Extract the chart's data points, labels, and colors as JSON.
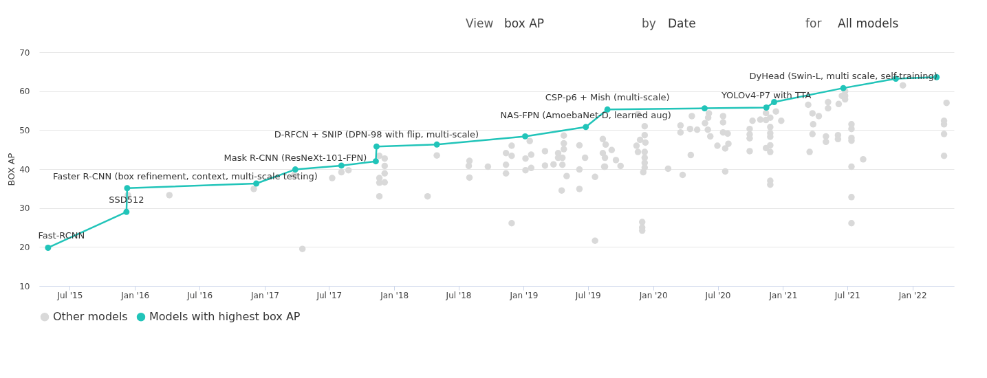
{
  "chart_data": {
    "type": "scatter",
    "xlabel": null,
    "ylabel": "BOX AP",
    "xlim": [
      "2015-04-06",
      "2022-04-28"
    ],
    "ylim": [
      10,
      70
    ],
    "yticks": [
      10,
      20,
      30,
      40,
      50,
      60,
      70
    ],
    "xticks": [
      {
        "value": "2015-07-01",
        "label": "Jul '15"
      },
      {
        "value": "2016-01-01",
        "label": "Jan '16"
      },
      {
        "value": "2016-07-01",
        "label": "Jul '16"
      },
      {
        "value": "2017-01-01",
        "label": "Jan '17"
      },
      {
        "value": "2017-07-01",
        "label": "Jul '17"
      },
      {
        "value": "2018-01-01",
        "label": "Jan '18"
      },
      {
        "value": "2018-07-01",
        "label": "Jul '18"
      },
      {
        "value": "2019-01-01",
        "label": "Jan '19"
      },
      {
        "value": "2019-07-01",
        "label": "Jul '19"
      },
      {
        "value": "2020-01-01",
        "label": "Jan '20"
      },
      {
        "value": "2020-07-01",
        "label": "Jul '20"
      },
      {
        "value": "2021-01-01",
        "label": "Jan '21"
      },
      {
        "value": "2021-07-01",
        "label": "Jul '21"
      },
      {
        "value": "2022-01-01",
        "label": "Jan '22"
      }
    ],
    "grid": "y",
    "legend": "bottom",
    "marker": "circle",
    "series": [
      {
        "name": "Other models",
        "color": "#d9d9d9",
        "x": [
          "2015-12-12",
          "2016-04-07",
          "2016-12-01",
          "2017-04-17",
          "2017-03-25",
          "2017-07-10",
          "2017-08-05",
          "2017-08-25",
          "2017-11-20",
          "2017-12-05",
          "2017-12-05",
          "2017-12-05",
          "2017-11-20",
          "2017-11-20",
          "2017-12-05",
          "2017-11-20",
          "2018-04-05",
          "2018-05-01",
          "2018-08-01",
          "2018-07-30",
          "2018-08-01",
          "2018-09-22",
          "2018-11-12",
          "2018-11-28",
          "2018-11-12",
          "2018-11-12",
          "2018-11-28",
          "2018-11-28",
          "2019-01-06",
          "2019-01-06",
          "2019-01-22",
          "2019-01-22",
          "2019-01-18",
          "2019-03-02",
          "2019-03-02",
          "2019-03-26",
          "2019-04-08",
          "2019-04-24",
          "2019-04-24",
          "2019-04-08",
          "2019-04-24",
          "2019-04-20",
          "2019-04-20",
          "2019-05-02",
          "2019-04-18",
          "2019-06-07",
          "2019-06-07",
          "2019-06-07",
          "2019-06-23",
          "2019-07-21",
          "2019-07-21",
          "2019-08-12",
          "2019-08-12",
          "2019-08-16",
          "2019-08-20",
          "2019-08-18",
          "2019-08-18",
          "2019-09-06",
          "2019-09-18",
          "2019-10-01",
          "2019-11-19",
          "2019-12-08",
          "2019-12-08",
          "2019-11-25",
          "2019-11-15",
          "2019-12-10",
          "2019-11-19",
          "2019-12-08",
          "2019-12-08",
          "2019-12-08",
          "2019-12-08",
          "2019-12-04",
          "2019-12-01",
          "2019-12-01",
          "2019-12-01",
          "2020-02-12",
          "2020-03-24",
          "2020-03-18",
          "2020-03-18",
          "2020-04-14",
          "2020-04-19",
          "2020-05-04",
          "2020-04-16",
          "2020-06-03",
          "2020-05-26",
          "2020-06-10",
          "2020-06-06",
          "2020-06-04",
          "2020-07-16",
          "2020-07-16",
          "2020-07-16",
          "2020-07-29",
          "2020-07-31",
          "2020-07-22",
          "2020-06-30",
          "2020-07-22",
          "2020-10-07",
          "2020-10-29",
          "2020-09-29",
          "2020-09-29",
          "2020-09-29",
          "2020-09-29",
          "2020-11-14",
          "2020-11-26",
          "2020-11-14",
          "2020-11-26",
          "2020-11-26",
          "2020-11-26",
          "2020-11-26",
          "2020-11-14",
          "2020-11-26",
          "2020-11-26",
          "2020-11-26",
          "2020-12-12",
          "2020-12-27",
          "2021-03-13",
          "2021-03-25",
          "2021-04-12",
          "2021-03-27",
          "2021-03-25",
          "2021-03-17",
          "2021-05-08",
          "2021-05-08",
          "2021-06-07",
          "2021-05-02",
          "2021-05-02",
          "2021-06-05",
          "2021-06-05",
          "2021-06-16",
          "2021-06-25",
          "2021-06-25",
          "2021-06-25",
          "2021-07-13",
          "2021-07-13",
          "2021-07-13",
          "2021-07-13",
          "2021-07-13",
          "2021-07-13",
          "2021-07-13",
          "2021-08-15",
          "2021-12-05",
          "2022-04-07",
          "2022-03-31",
          "2022-03-31",
          "2022-03-31",
          "2022-03-31"
        ],
        "values": [
          33.3,
          33.3,
          34.9,
          19.5,
          38.5,
          37.7,
          39.2,
          39.7,
          43.4,
          42.7,
          40.8,
          38.9,
          37.7,
          36.5,
          36.6,
          33.0,
          33.0,
          43.5,
          42.1,
          40.8,
          37.8,
          40.6,
          44.1,
          46.0,
          41.1,
          38.9,
          43.4,
          26.1,
          42.7,
          39.7,
          43.7,
          40.3,
          47.2,
          44.6,
          40.9,
          41.2,
          44.1,
          45.1,
          48.6,
          42.9,
          46.6,
          42.9,
          41.1,
          38.2,
          34.5,
          46.1,
          39.9,
          34.9,
          42.9,
          38.0,
          21.6,
          47.7,
          44.1,
          40.6,
          46.3,
          42.9,
          40.6,
          44.9,
          42.3,
          40.8,
          54.1,
          51.0,
          48.7,
          47.5,
          46.0,
          46.8,
          44.4,
          44.4,
          42.9,
          41.6,
          40.4,
          39.2,
          26.4,
          25.0,
          24.2,
          40.1,
          38.5,
          51.2,
          49.4,
          50.3,
          53.6,
          50.1,
          43.6,
          50.1,
          51.8,
          48.4,
          54.3,
          53.2,
          53.6,
          52.0,
          49.4,
          49.1,
          46.5,
          45.3,
          46.0,
          39.4,
          52.4,
          52.7,
          50.3,
          48.9,
          47.9,
          44.6,
          54.4,
          53.2,
          52.6,
          50.8,
          49.2,
          48.3,
          46.1,
          45.4,
          44.4,
          37.0,
          36.0,
          54.8,
          52.4,
          56.5,
          54.3,
          53.6,
          51.5,
          49.0,
          44.4,
          57.2,
          55.6,
          56.7,
          48.4,
          47.0,
          48.7,
          47.7,
          58.8,
          60.0,
          58.8,
          57.9,
          51.5,
          50.3,
          48.0,
          47.3,
          40.6,
          32.8,
          26.1,
          42.5,
          61.5,
          57.0,
          52.4,
          51.5,
          49.0,
          43.4
        ]
      },
      {
        "name": "Models with highest box AP",
        "type": "line",
        "color": "#21c4b9",
        "x": [
          "2015-05-01",
          "2015-12-08",
          "2015-12-10",
          "2016-12-08",
          "2017-03-28",
          "2017-08-05",
          "2017-11-10",
          "2017-11-12",
          "2018-05-01",
          "2019-01-05",
          "2019-06-25",
          "2019-08-25",
          "2020-05-25",
          "2020-11-15",
          "2020-12-07",
          "2021-06-20",
          "2021-11-15",
          "2022-03-10"
        ],
        "values": [
          19.8,
          29.0,
          35.1,
          36.3,
          39.9,
          40.9,
          42.0,
          45.8,
          46.3,
          48.4,
          50.8,
          55.3,
          55.6,
          55.8,
          57.2,
          60.8,
          63.2,
          63.6
        ]
      }
    ],
    "annotations": [
      "View",
      "box AP",
      "by",
      "Date",
      "for",
      "All models",
      {
        "text": "Fast-RCNN",
        "x": "2015-05-01",
        "y": 19.8
      },
      {
        "text": "SSD512",
        "x": "2015-12-08",
        "y": 29.0
      },
      {
        "text": "Faster R-CNN (box refinement, context, multi-scale testing)",
        "x": "2015-12-10",
        "y": 35.1
      },
      {
        "text": "Mask R-CNN (ResNeXt-101-FPN)",
        "x": "2017-03-28",
        "y": 39.9
      },
      {
        "text": "D-RFCN + SNIP (DPN-98 with flip, multi-scale)",
        "x": "2017-11-12",
        "y": 45.8
      },
      {
        "text": "NAS-FPN (AmoebaNet-D, learned aug)",
        "x": "2019-06-25",
        "y": 50.8
      },
      {
        "text": "CSP-p6 + Mish (multi-scale)",
        "x": "2019-08-25",
        "y": 55.3
      },
      {
        "text": "YOLOv4-P7 with TTA",
        "x": "2020-11-15",
        "y": 55.8
      },
      {
        "text": "DyHead (Swin-L, multi scale, self-training)",
        "x": "2021-06-20",
        "y": 60.8
      }
    ]
  }
}
